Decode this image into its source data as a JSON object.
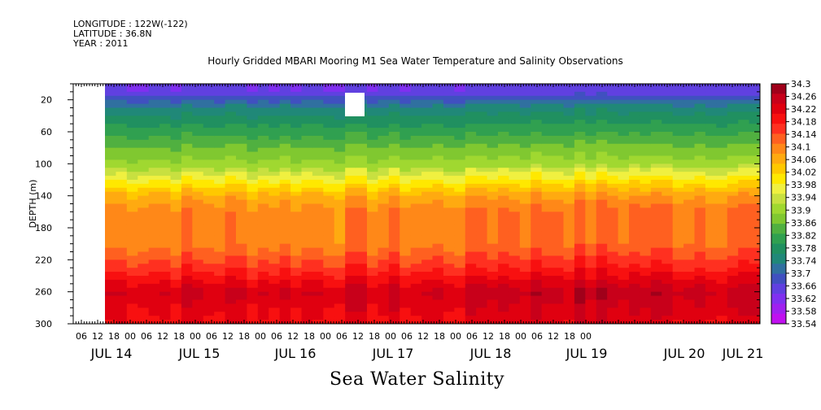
{
  "header": {
    "longitude": "LONGITUDE : 122W(-122)",
    "latitude": "LATITUDE : 36.8N",
    "year": "YEAR : 2011",
    "title": "Hourly Gridded MBARI Mooring M1 Sea Water Temperature and Salinity Observations"
  },
  "chart_data": {
    "type": "heatmap",
    "title": "Hourly Gridded MBARI Mooring M1 Sea Water Temperature and Salinity Observations",
    "xlabel": "Sea Water Salinity",
    "ylabel": "DEPTH (m)",
    "y_range": [
      300,
      0
    ],
    "y_ticks": [
      20,
      60,
      100,
      140,
      180,
      220,
      260,
      300
    ],
    "x_hour_ticks": [
      "06",
      "12",
      "18",
      "00",
      "06",
      "12",
      "18",
      "00",
      "06",
      "12",
      "18",
      "00",
      "06",
      "12",
      "18",
      "00",
      "06",
      "12",
      "18",
      "00",
      "06",
      "12",
      "18",
      "00",
      "06",
      "12",
      "18",
      "00",
      "06",
      "12",
      "18",
      "00"
    ],
    "x_day_labels": [
      "JUL 14",
      "JUL 15",
      "JUL 16",
      "JUL 17",
      "JUL 18",
      "JUL 19",
      "JUL 20",
      "JUL 21"
    ],
    "colorbar_levels": [
      "34.3",
      "34.26",
      "34.22",
      "34.18",
      "34.14",
      "34.1",
      "34.06",
      "34.02",
      "33.98",
      "33.94",
      "33.9",
      "33.86",
      "33.82",
      "33.78",
      "33.74",
      "33.7",
      "33.66",
      "33.62",
      "33.58",
      "33.54"
    ],
    "colorbar_colors": [
      "#a0001a",
      "#c8001a",
      "#e00010",
      "#f81010",
      "#ff3020",
      "#ff6020",
      "#ff8818",
      "#ffaa10",
      "#ffc800",
      "#ffe800",
      "#f0f040",
      "#c8e040",
      "#a0d830",
      "#80c830",
      "#50b040",
      "#30a050",
      "#209060",
      "#208878",
      "#3070a0",
      "#4050c0",
      "#6040e0",
      "#8030f0",
      "#a020f0",
      "#c010f0"
    ],
    "profile": [
      {
        "depth": 10,
        "value": 33.64
      },
      {
        "depth": 30,
        "value": 33.74
      },
      {
        "depth": 55,
        "value": 33.8
      },
      {
        "depth": 80,
        "value": 33.86
      },
      {
        "depth": 100,
        "value": 33.9
      },
      {
        "depth": 120,
        "value": 33.98
      },
      {
        "depth": 140,
        "value": 34.06
      },
      {
        "depth": 160,
        "value": 34.1
      },
      {
        "depth": 200,
        "value": 34.1
      },
      {
        "depth": 230,
        "value": 34.16
      },
      {
        "depth": 260,
        "value": 34.24
      },
      {
        "depth": 280,
        "value": 34.22
      },
      {
        "depth": 300,
        "value": 34.2
      }
    ]
  }
}
